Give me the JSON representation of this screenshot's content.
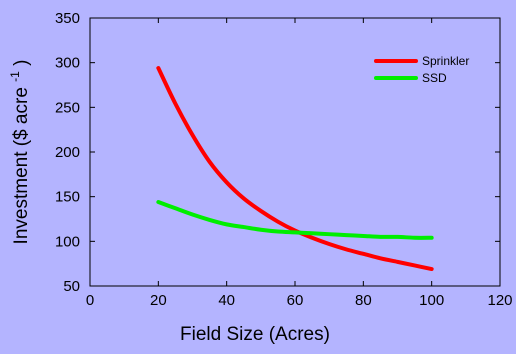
{
  "colors": {
    "background": "#b4b4ff",
    "sprinkler": "#ff0000",
    "ssd": "#00ee00",
    "axis": "#000000"
  },
  "chart_data": {
    "type": "line",
    "title": "",
    "xlabel": "Field Size (Acres)",
    "ylabel_main": "Investment ($ acre",
    "ylabel_superscript": "-1",
    "ylabel_close": ")",
    "xlim": [
      0,
      120
    ],
    "ylim": [
      50,
      350
    ],
    "xticks": [
      0,
      20,
      40,
      60,
      80,
      100,
      120
    ],
    "yticks": [
      50,
      100,
      150,
      200,
      250,
      300,
      350
    ],
    "grid": false,
    "legend_position": "top-right",
    "series": [
      {
        "name": "Sprinkler",
        "color": "#ff0000",
        "x": [
          20,
          25,
          30,
          35,
          40,
          45,
          50,
          55,
          60,
          65,
          70,
          75,
          80,
          85,
          90,
          95,
          100
        ],
        "y": [
          294,
          254,
          219,
          189,
          166,
          148,
          134,
          122,
          112,
          104,
          97,
          91,
          86,
          81,
          77,
          73,
          69
        ]
      },
      {
        "name": "SSD",
        "color": "#00ee00",
        "x": [
          20,
          25,
          30,
          35,
          40,
          45,
          50,
          55,
          60,
          65,
          70,
          75,
          80,
          85,
          90,
          95,
          100
        ],
        "y": [
          144,
          137,
          130,
          124,
          119,
          116,
          113,
          111,
          110,
          109,
          108,
          107,
          106,
          105,
          105,
          104,
          104
        ]
      }
    ]
  }
}
